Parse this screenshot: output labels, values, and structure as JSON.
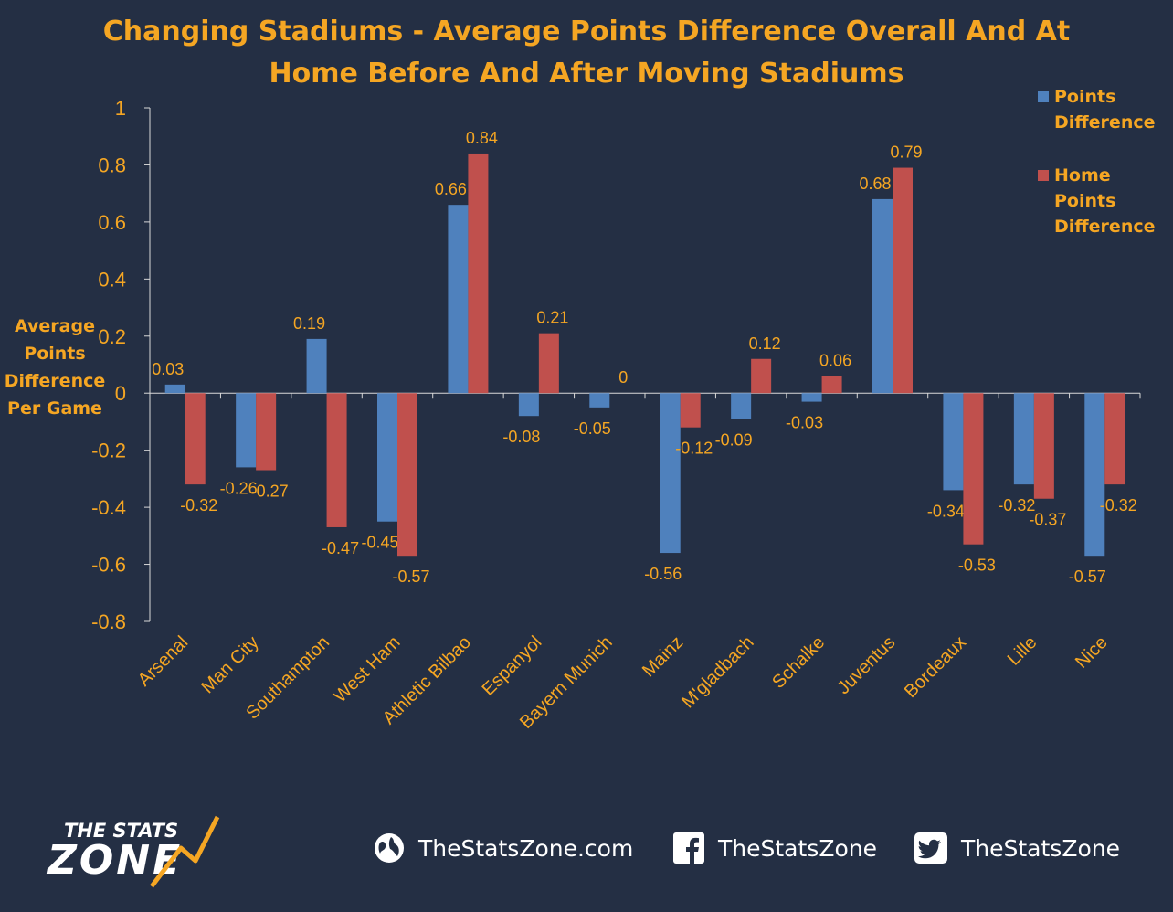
{
  "title": {
    "line1": "Changing Stadiums - Average Points Difference Overall And At",
    "line2": "Home Before And After Moving Stadiums"
  },
  "colors": {
    "background": "#242f44",
    "accent": "#f5a623",
    "series1": "#4f81bd",
    "series2": "#c0504d",
    "axis": "#d9d9d9"
  },
  "chart_data": {
    "type": "bar",
    "title": "Changing Stadiums - Average Points Difference Overall And At Home Before And After Moving Stadiums",
    "ylabel_lines": [
      "Average",
      "Points",
      "Difference",
      "Per Game"
    ],
    "ylim": [
      -0.8,
      1
    ],
    "yticks": [
      "-0.8",
      "-0.6",
      "-0.4",
      "-0.2",
      "0",
      "0.2",
      "0.4",
      "0.6",
      "0.8",
      "1"
    ],
    "grid": false,
    "legend_position": "top-right",
    "categories": [
      "Arsenal",
      "Man City",
      "Southampton",
      "West Ham",
      "Athletic Bilbao",
      "Espanyol",
      "Bayern Munich",
      "Mainz",
      "M'gladbach",
      "Schalke",
      "Juventus",
      "Bordeaux",
      "Lille",
      "Nice"
    ],
    "series": [
      {
        "name": "Points Difference",
        "color": "#4f81bd",
        "values": [
          0.03,
          -0.26,
          0.19,
          -0.45,
          0.66,
          -0.08,
          -0.05,
          -0.56,
          -0.09,
          -0.03,
          0.68,
          -0.34,
          -0.32,
          -0.57
        ]
      },
      {
        "name": "Home Points Difference",
        "color": "#c0504d",
        "values": [
          -0.32,
          -0.27,
          -0.47,
          -0.57,
          0.84,
          0.21,
          0,
          -0.12,
          0.12,
          0.06,
          0.79,
          -0.53,
          -0.37,
          -0.32
        ]
      }
    ]
  },
  "legend": {
    "item1_line1": "Points",
    "item1_line2": "Difference",
    "item2_line1": "Home",
    "item2_line2": "Points",
    "item2_line3": "Difference"
  },
  "footer": {
    "logo_line1": "THE STATS",
    "logo_line2": "ZONE",
    "website": "TheStatsZone.com",
    "facebook": "TheStatsZone",
    "twitter": "TheStatsZone",
    "icons": [
      "globe-icon",
      "facebook-icon",
      "twitter-icon"
    ]
  }
}
